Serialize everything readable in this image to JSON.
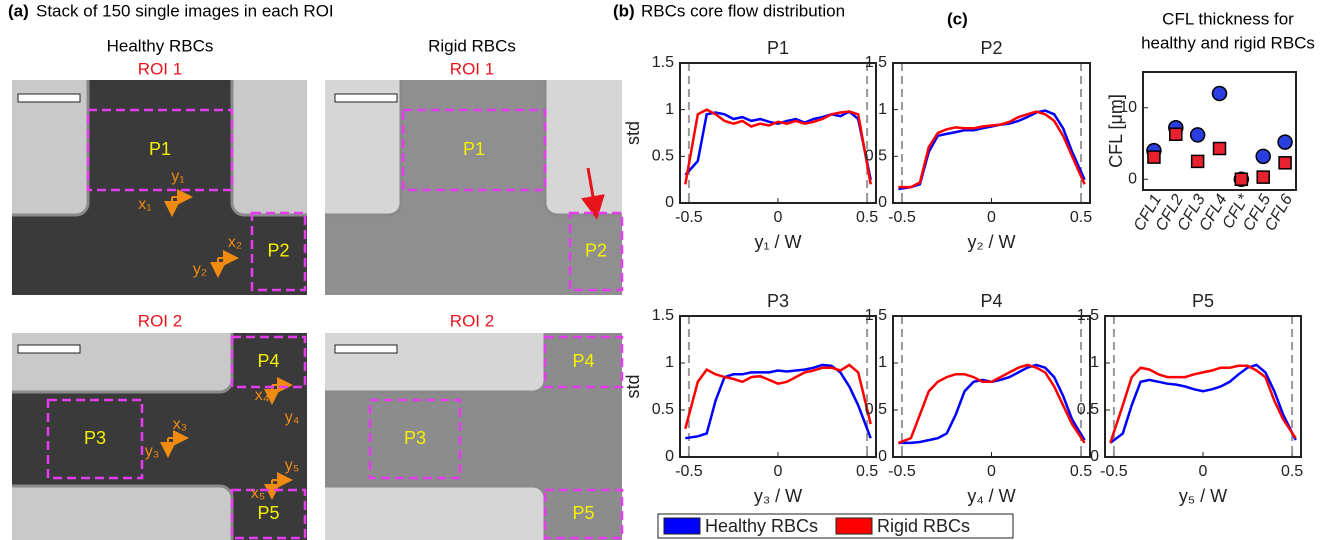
{
  "panel_a": {
    "label": "(a)",
    "title": "Stack of 150 single images in each ROI",
    "columns": [
      "Healthy RBCs",
      "Rigid RBCs"
    ],
    "images": [
      {
        "roi": "ROI 1",
        "regions": [
          "P1",
          "P2"
        ],
        "axes": [
          "x₁",
          "y₁",
          "x₂",
          "y₂"
        ]
      },
      {
        "roi": "ROI 1",
        "regions": [
          "P1",
          "P2"
        ]
      },
      {
        "roi": "ROI 2",
        "regions": [
          "P4",
          "P3",
          "P5"
        ],
        "axes": [
          "x₃",
          "y₃",
          "x₄",
          "y₄",
          "x₅",
          "y₅"
        ]
      },
      {
        "roi": "ROI 2",
        "regions": [
          "P4",
          "P3",
          "P5"
        ]
      }
    ]
  },
  "panel_b": {
    "label": "(b)",
    "title": "RBCs core flow distribution",
    "legend": [
      {
        "name": "Healthy RBCs",
        "color": "#0000ff"
      },
      {
        "name": "Rigid RBCs",
        "color": "#ff0000"
      }
    ]
  },
  "chart_data": [
    {
      "type": "line",
      "title": "P1",
      "ylabel": "std",
      "xlabel": "y₁ / W",
      "x": [
        -0.52,
        -0.45,
        -0.4,
        -0.35,
        -0.3,
        -0.25,
        -0.2,
        -0.15,
        -0.1,
        -0.05,
        0,
        0.05,
        0.1,
        0.15,
        0.2,
        0.25,
        0.3,
        0.35,
        0.4,
        0.45,
        0.52
      ],
      "series": [
        {
          "color": "#0000ff",
          "values": [
            0.3,
            0.45,
            0.95,
            0.97,
            0.95,
            0.9,
            0.92,
            0.88,
            0.9,
            0.87,
            0.85,
            0.88,
            0.9,
            0.86,
            0.9,
            0.92,
            0.95,
            0.93,
            0.98,
            0.9,
            0.25
          ]
        },
        {
          "color": "#ff0000",
          "values": [
            0.2,
            0.95,
            1.0,
            0.95,
            0.88,
            0.85,
            0.88,
            0.82,
            0.85,
            0.83,
            0.87,
            0.85,
            0.88,
            0.85,
            0.87,
            0.9,
            0.95,
            0.97,
            0.98,
            0.95,
            0.2
          ]
        }
      ],
      "xlim": [
        -0.55,
        0.55
      ],
      "xticks": [
        -0.5,
        0,
        0.5
      ],
      "ylim": [
        0,
        1.5
      ],
      "yticks": [
        0,
        0.5,
        1,
        1.5
      ],
      "vlines": [
        -0.5,
        0.5
      ]
    },
    {
      "type": "line",
      "title": "P2",
      "xlabel": "y₂ / W",
      "x": [
        -0.52,
        -0.45,
        -0.4,
        -0.35,
        -0.3,
        -0.25,
        -0.2,
        -0.15,
        -0.1,
        -0.05,
        0,
        0.05,
        0.1,
        0.15,
        0.2,
        0.25,
        0.3,
        0.35,
        0.4,
        0.45,
        0.52
      ],
      "series": [
        {
          "color": "#0000ff",
          "values": [
            0.15,
            0.17,
            0.2,
            0.55,
            0.72,
            0.74,
            0.76,
            0.78,
            0.78,
            0.8,
            0.82,
            0.84,
            0.85,
            0.88,
            0.92,
            0.97,
            0.99,
            0.95,
            0.8,
            0.55,
            0.25
          ]
        },
        {
          "color": "#ff0000",
          "values": [
            0.17,
            0.17,
            0.22,
            0.6,
            0.75,
            0.79,
            0.81,
            0.8,
            0.8,
            0.82,
            0.83,
            0.84,
            0.87,
            0.92,
            0.95,
            0.98,
            0.95,
            0.88,
            0.72,
            0.5,
            0.2
          ]
        }
      ],
      "xlim": [
        -0.55,
        0.55
      ],
      "xticks": [
        -0.5,
        0,
        0.5
      ],
      "ylim": [
        0,
        1.5
      ],
      "yticks": [
        0,
        0.5,
        1,
        1.5
      ],
      "vlines": [
        -0.5,
        0.5
      ]
    },
    {
      "type": "line",
      "title": "P3",
      "ylabel": "std",
      "xlabel": "y₃ / W",
      "x": [
        -0.52,
        -0.45,
        -0.4,
        -0.35,
        -0.3,
        -0.25,
        -0.2,
        -0.15,
        -0.1,
        -0.05,
        0,
        0.05,
        0.1,
        0.15,
        0.2,
        0.25,
        0.3,
        0.35,
        0.4,
        0.45,
        0.52
      ],
      "series": [
        {
          "color": "#0000ff",
          "values": [
            0.2,
            0.22,
            0.25,
            0.6,
            0.85,
            0.88,
            0.88,
            0.9,
            0.9,
            0.9,
            0.92,
            0.91,
            0.92,
            0.93,
            0.95,
            0.98,
            0.97,
            0.9,
            0.75,
            0.55,
            0.2
          ]
        },
        {
          "color": "#ff0000",
          "values": [
            0.3,
            0.8,
            0.93,
            0.88,
            0.85,
            0.83,
            0.8,
            0.85,
            0.86,
            0.82,
            0.78,
            0.8,
            0.85,
            0.9,
            0.92,
            0.95,
            0.95,
            0.92,
            0.98,
            0.9,
            0.35
          ]
        }
      ],
      "xlim": [
        -0.55,
        0.55
      ],
      "xticks": [
        -0.5,
        0,
        0.5
      ],
      "ylim": [
        0,
        1.5
      ],
      "yticks": [
        0,
        0.5,
        1,
        1.5
      ],
      "vlines": [
        -0.5,
        0.5
      ]
    },
    {
      "type": "line",
      "title": "P4",
      "xlabel": "y₄ / W",
      "x": [
        -0.52,
        -0.45,
        -0.4,
        -0.35,
        -0.3,
        -0.25,
        -0.2,
        -0.15,
        -0.1,
        -0.05,
        0,
        0.05,
        0.1,
        0.15,
        0.2,
        0.25,
        0.3,
        0.35,
        0.4,
        0.45,
        0.52
      ],
      "series": [
        {
          "color": "#0000ff",
          "values": [
            0.15,
            0.15,
            0.16,
            0.18,
            0.2,
            0.25,
            0.45,
            0.7,
            0.8,
            0.82,
            0.8,
            0.82,
            0.85,
            0.9,
            0.95,
            0.98,
            0.95,
            0.85,
            0.65,
            0.4,
            0.18
          ]
        },
        {
          "color": "#ff0000",
          "values": [
            0.15,
            0.2,
            0.45,
            0.7,
            0.8,
            0.85,
            0.88,
            0.88,
            0.85,
            0.8,
            0.8,
            0.85,
            0.9,
            0.95,
            0.98,
            0.95,
            0.9,
            0.75,
            0.55,
            0.35,
            0.15
          ]
        }
      ],
      "xlim": [
        -0.55,
        0.55
      ],
      "xticks": [
        -0.5,
        0,
        0.5
      ],
      "ylim": [
        0,
        1.5
      ],
      "yticks": [
        0,
        0.5,
        1,
        1.5
      ],
      "vlines": [
        -0.5,
        0.5
      ]
    },
    {
      "type": "line",
      "title": "P5",
      "xlabel": "y₅ / W",
      "x": [
        -0.52,
        -0.45,
        -0.4,
        -0.35,
        -0.3,
        -0.25,
        -0.2,
        -0.15,
        -0.1,
        -0.05,
        0,
        0.05,
        0.1,
        0.15,
        0.2,
        0.25,
        0.3,
        0.35,
        0.4,
        0.45,
        0.52
      ],
      "series": [
        {
          "color": "#0000ff",
          "values": [
            0.15,
            0.25,
            0.55,
            0.8,
            0.82,
            0.8,
            0.78,
            0.77,
            0.75,
            0.72,
            0.7,
            0.72,
            0.75,
            0.8,
            0.88,
            0.95,
            0.98,
            0.9,
            0.7,
            0.45,
            0.18
          ]
        },
        {
          "color": "#ff0000",
          "values": [
            0.15,
            0.55,
            0.85,
            0.95,
            0.93,
            0.88,
            0.85,
            0.85,
            0.85,
            0.88,
            0.9,
            0.92,
            0.95,
            0.95,
            0.97,
            0.97,
            0.92,
            0.85,
            0.6,
            0.4,
            0.2
          ]
        }
      ],
      "xlim": [
        -0.55,
        0.55
      ],
      "xticks": [
        -0.5,
        0,
        0.5
      ],
      "ylim": [
        0,
        1.5
      ],
      "yticks": [
        0,
        0.5,
        1,
        1.5
      ],
      "vlines": [
        -0.5,
        0.5
      ]
    },
    {
      "type": "scatter",
      "label": "(c)",
      "title": [
        "CFL thickness for",
        "healthy and rigid RBCs"
      ],
      "ylabel": "CFL [μm]",
      "categories": [
        "CFL1",
        "CFL2",
        "CFL3",
        "CFL4",
        "CFL*",
        "CFL5",
        "CFL6"
      ],
      "series": [
        {
          "color": "#2a3ee0",
          "marker": "circle",
          "values": [
            4,
            7.2,
            6.2,
            12,
            0,
            3.2,
            5.2
          ]
        },
        {
          "color": "#e8212e",
          "marker": "square",
          "values": [
            3.1,
            6.3,
            2.5,
            4.3,
            0,
            0.3,
            2.3
          ]
        }
      ],
      "ylim": [
        -1.5,
        15
      ],
      "yticks": [
        0,
        10
      ]
    }
  ]
}
